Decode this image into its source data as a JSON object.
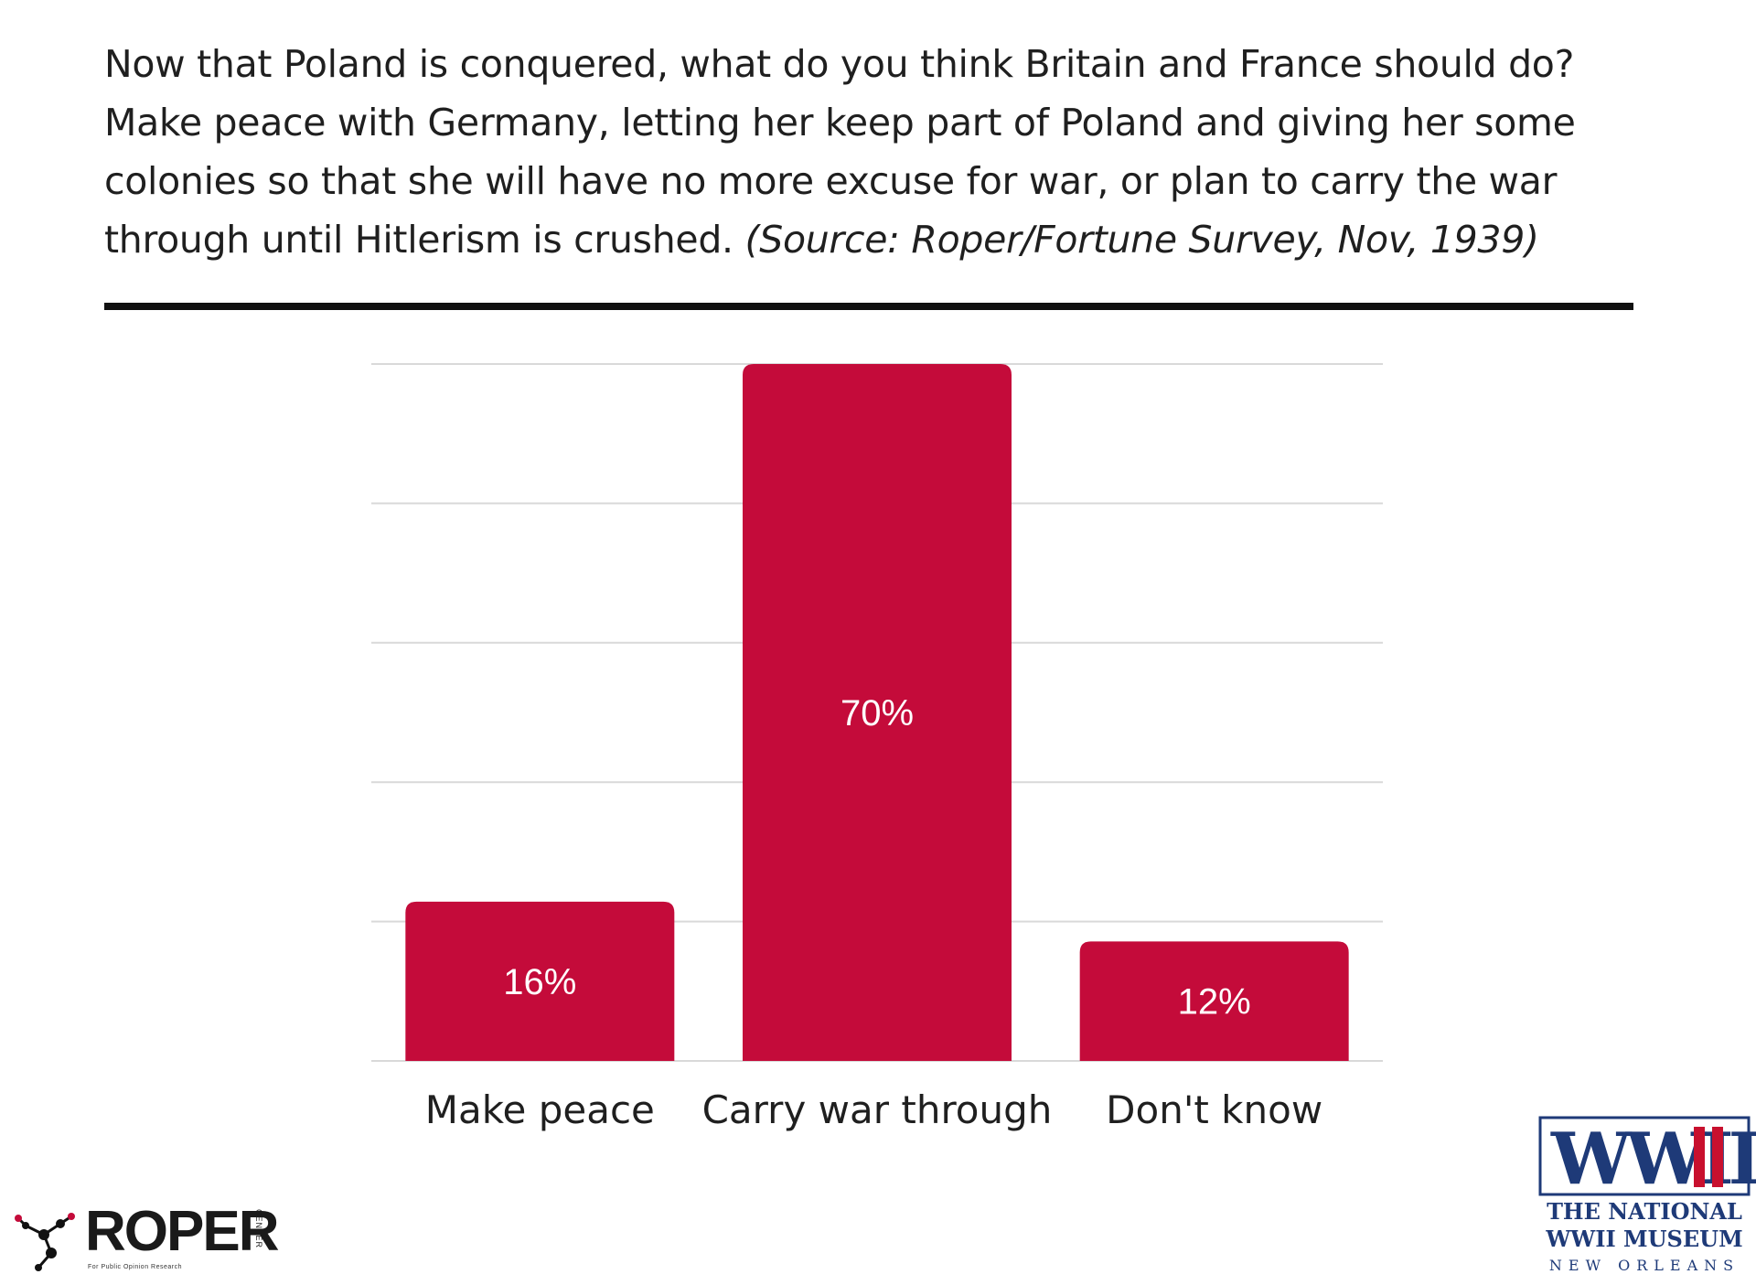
{
  "question": {
    "text": "Now that Poland is conquered, what do you think Britain and France should do? Make peace with Germany, letting her keep part of Poland and giving her some colonies so that she will have no more excuse for war, or plan to carry the war through until Hitlerism is crushed.",
    "source": "(Source: Roper/Fortune Survey, Nov, 1939)"
  },
  "chart_data": {
    "type": "bar",
    "title": "",
    "xlabel": "",
    "ylabel": "",
    "categories": [
      "Make peace",
      "Carry war through",
      "Don't know"
    ],
    "values": [
      16,
      70,
      12
    ],
    "value_labels": [
      "16%",
      "70%",
      "12%"
    ],
    "ylim": [
      0,
      70
    ],
    "grid": true,
    "bar_color": "#c40b3a"
  },
  "logos": {
    "roper": {
      "wordmark": "ROPER",
      "vertical": "CENTER",
      "tagline": "For Public Opinion Research"
    },
    "museum": {
      "mark": "WWII",
      "line1": "THE NATIONAL",
      "line2": "WWII MUSEUM",
      "line3": "NEW ORLEANS"
    }
  },
  "colors": {
    "bar": "#c40b3a",
    "grid": "#d9d9d9",
    "museum_blue": "#1e3a78",
    "museum_red": "#c8102e"
  }
}
